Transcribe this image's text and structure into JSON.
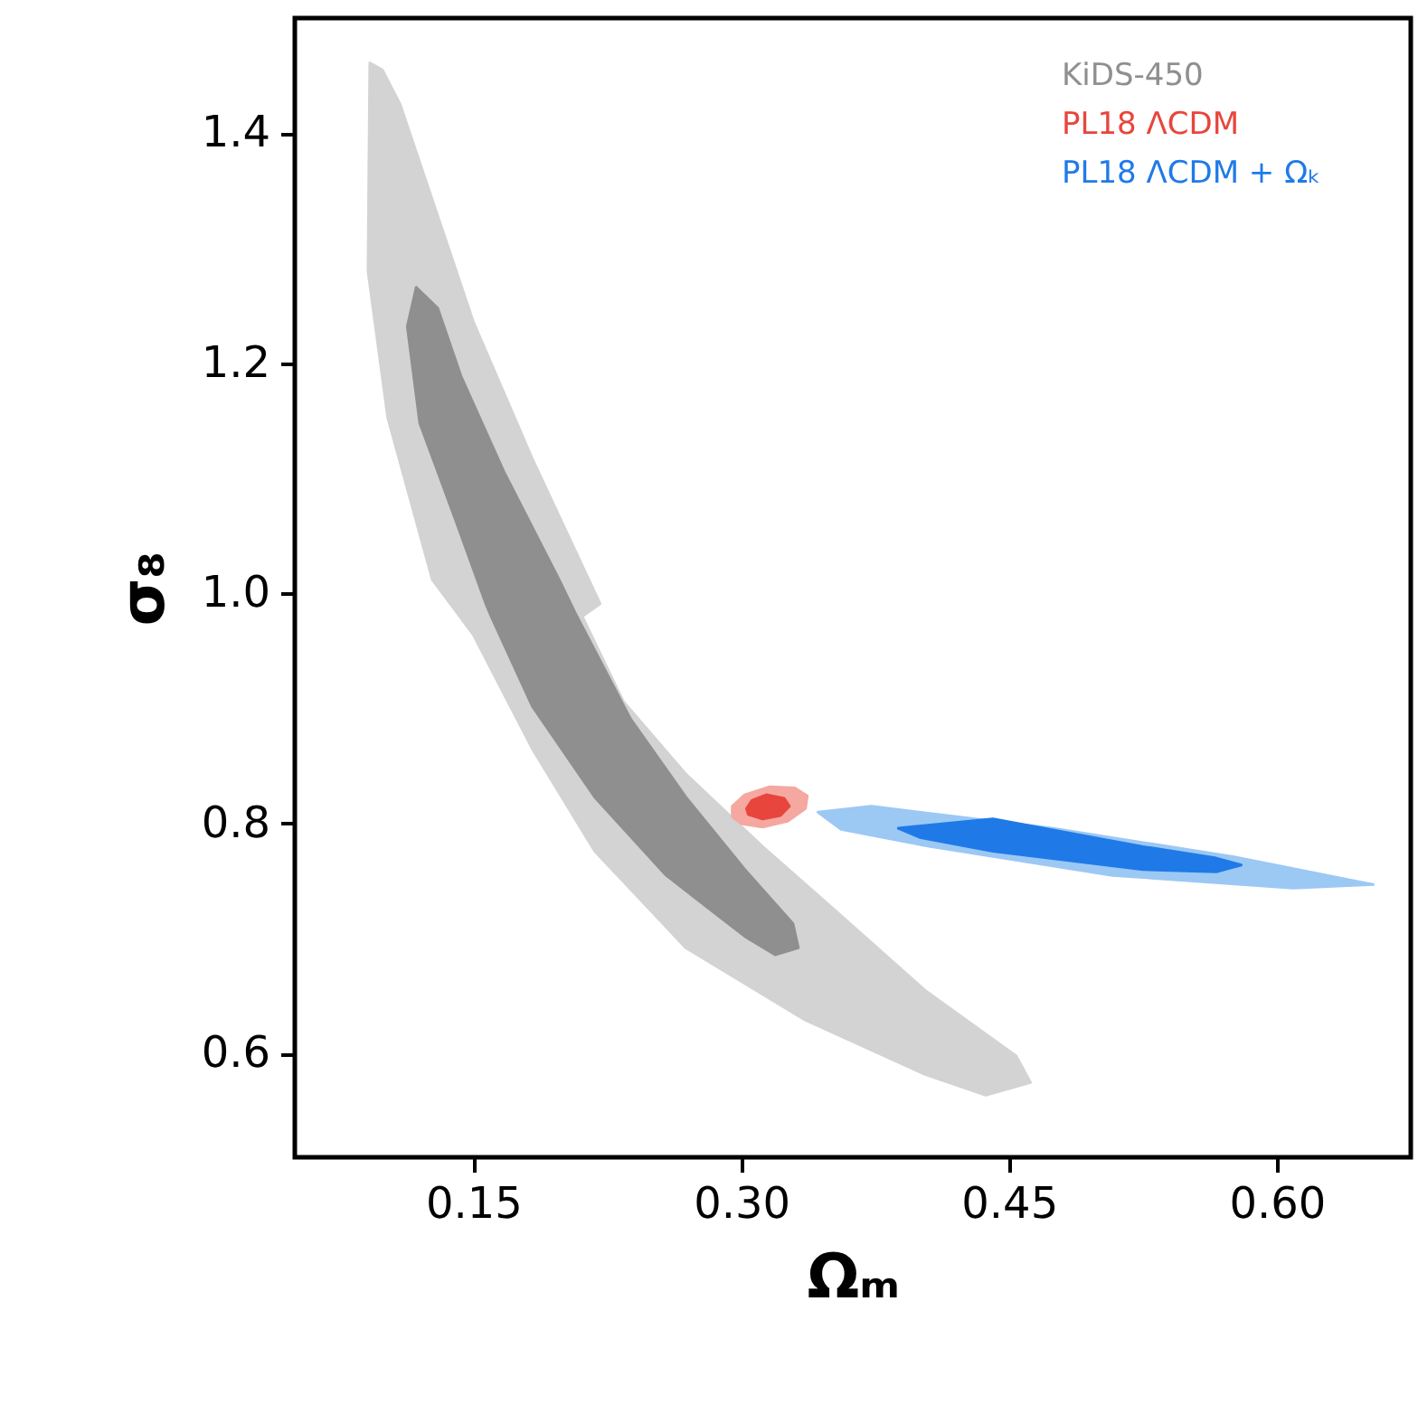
{
  "chart_data": {
    "type": "area",
    "xlabel": "Ωₘ",
    "ylabel": "σ₈",
    "xlim": [
      0.05,
      0.675
    ],
    "ylim": [
      0.51,
      1.5
    ],
    "xticks": [
      0.15,
      {
        "value": 0.3,
        "label": "0.30"
      },
      0.45,
      {
        "value": 0.6,
        "label": "0.60"
      }
    ],
    "yticks": [
      0.6,
      0.8,
      {
        "value": 1.0,
        "label": "1.0"
      },
      1.2,
      1.4
    ],
    "grid": false,
    "legend": "top right",
    "series": [
      {
        "color": "#d3d3d3",
        "x": [
          0.092,
          0.091,
          0.102,
          0.127,
          0.15,
          0.183,
          0.218,
          0.269,
          0.335,
          0.403,
          0.437,
          0.462,
          0.454,
          0.403,
          0.353,
          0.312,
          0.269,
          0.234,
          0.211,
          0.221,
          0.183,
          0.15,
          0.127,
          0.109,
          0.099
        ],
        "values": [
          1.461,
          1.28,
          1.153,
          1.012,
          0.964,
          0.865,
          0.776,
          0.692,
          0.63,
          0.582,
          0.564,
          0.575,
          0.598,
          0.655,
          0.724,
          0.78,
          0.843,
          0.906,
          0.98,
          0.991,
          1.117,
          1.236,
          1.342,
          1.425,
          1.455
        ]
      },
      {
        "name": "KiDS-450",
        "color": "#8f8f8f",
        "x": [
          0.118,
          0.113,
          0.12,
          0.14,
          0.157,
          0.16,
          0.183,
          0.218,
          0.258,
          0.302,
          0.319,
          0.332,
          0.329,
          0.302,
          0.269,
          0.238,
          0.208,
          0.198,
          0.167,
          0.143,
          0.13
        ],
        "values": [
          1.266,
          1.232,
          1.148,
          1.064,
          0.991,
          0.98,
          0.902,
          0.823,
          0.755,
          0.702,
          0.686,
          0.692,
          0.713,
          0.76,
          0.823,
          0.891,
          0.98,
          1.012,
          1.106,
          1.189,
          1.248
        ]
      },
      {
        "color": "#f4a8a0",
        "x": [
          0.295,
          0.3,
          0.312,
          0.326,
          0.336,
          0.337,
          0.33,
          0.316,
          0.302,
          0.295
        ],
        "values": [
          0.806,
          0.8,
          0.797,
          0.802,
          0.813,
          0.824,
          0.831,
          0.832,
          0.825,
          0.815
        ]
      },
      {
        "name": "PL18 ΛCDM",
        "color": "#e8453c",
        "x": [
          0.304,
          0.312,
          0.322,
          0.327,
          0.324,
          0.314,
          0.306,
          0.303
        ],
        "values": [
          0.808,
          0.804,
          0.807,
          0.815,
          0.822,
          0.825,
          0.82,
          0.813
        ]
      },
      {
        "color": "#9cc8f4",
        "x": [
          0.343,
          0.373,
          0.474,
          0.576,
          0.654,
          0.609,
          0.508,
          0.406,
          0.356
        ],
        "values": [
          0.81,
          0.815,
          0.796,
          0.771,
          0.747,
          0.744,
          0.755,
          0.78,
          0.795
        ]
      },
      {
        "name": "PL18 ΛCDM + Ωₖ",
        "color": "#1f7ae8",
        "x": [
          0.388,
          0.441,
          0.525,
          0.566,
          0.58,
          0.566,
          0.525,
          0.441,
          0.4
        ],
        "values": [
          0.796,
          0.804,
          0.78,
          0.77,
          0.764,
          0.758,
          0.76,
          0.776,
          0.788
        ]
      }
    ]
  }
}
